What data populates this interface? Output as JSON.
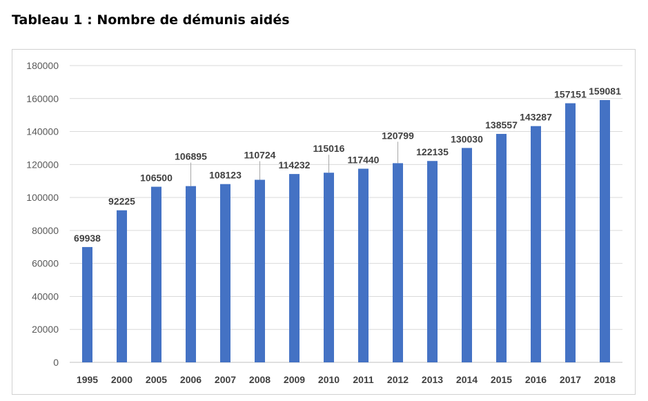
{
  "title": "Tableau 1 : Nombre de démunis aidés",
  "colors": {
    "bar": "#4472C4",
    "grid": "#d9d9d9",
    "axis_text": "#595959",
    "label_text": "#404040",
    "frame": "#d0d0d0"
  },
  "chart_data": {
    "type": "bar",
    "categories": [
      "1995",
      "2000",
      "2005",
      "2006",
      "2007",
      "2008",
      "2009",
      "2010",
      "2011",
      "2012",
      "2013",
      "2014",
      "2015",
      "2016",
      "2017",
      "2018"
    ],
    "values": [
      69938,
      92225,
      106500,
      106895,
      108123,
      110724,
      114232,
      115016,
      117440,
      120799,
      122135,
      130030,
      138557,
      143287,
      157151,
      159081
    ],
    "data_labels": [
      "69938",
      "92225",
      "106500",
      "106895",
      "108123",
      "110724",
      "114232",
      "115016",
      "117440",
      "120799",
      "122135",
      "130030",
      "138557",
      "143287",
      "157151",
      "159081"
    ],
    "y_ticks": [
      "0",
      "20000",
      "40000",
      "60000",
      "80000",
      "100000",
      "120000",
      "140000",
      "160000",
      "180000"
    ],
    "ylim": [
      0,
      180000
    ],
    "grid": true,
    "legend": "none"
  }
}
